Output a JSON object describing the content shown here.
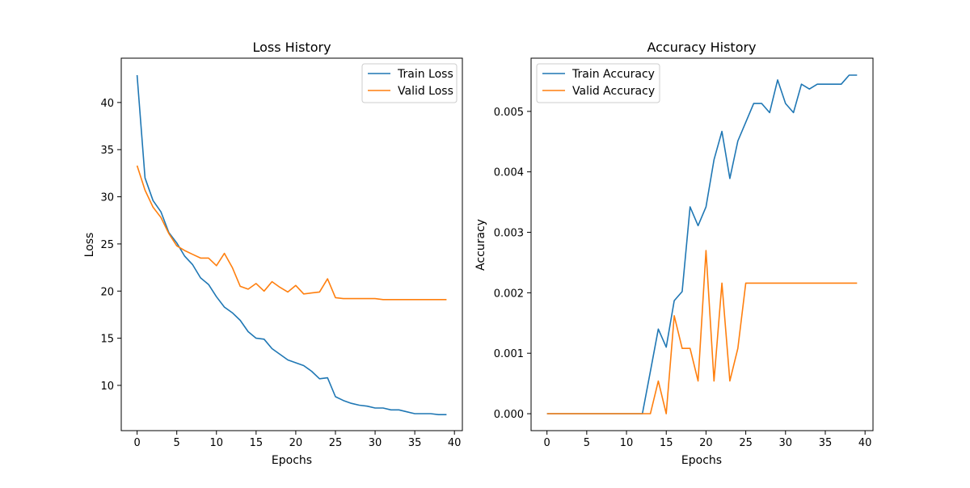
{
  "chart_data": [
    {
      "type": "line",
      "title": "Loss History",
      "xlabel": "Epochs",
      "ylabel": "Loss",
      "xlim": [
        -2,
        41
      ],
      "ylim": [
        5.2,
        44.7
      ],
      "x_ticks": [
        0,
        5,
        10,
        15,
        20,
        25,
        30,
        35,
        40
      ],
      "y_ticks": [
        10,
        15,
        20,
        25,
        30,
        35,
        40
      ],
      "grid": false,
      "legend_position": "upper right",
      "x": [
        0,
        1,
        2,
        3,
        4,
        5,
        6,
        7,
        8,
        9,
        10,
        11,
        12,
        13,
        14,
        15,
        16,
        17,
        18,
        19,
        20,
        21,
        22,
        23,
        24,
        25,
        26,
        27,
        28,
        29,
        30,
        31,
        32,
        33,
        34,
        35,
        36,
        37,
        38,
        39
      ],
      "series": [
        {
          "name": "Train Loss",
          "color": "#1f77b4",
          "values": [
            42.9,
            32.0,
            29.6,
            28.4,
            26.2,
            25.1,
            23.7,
            22.8,
            21.4,
            20.7,
            19.4,
            18.3,
            17.7,
            16.9,
            15.7,
            15.0,
            14.9,
            13.9,
            13.3,
            12.7,
            12.4,
            12.1,
            11.5,
            10.7,
            10.8,
            8.8,
            8.4,
            8.1,
            7.9,
            7.8,
            7.6,
            7.6,
            7.4,
            7.4,
            7.2,
            7.0,
            7.0,
            7.0,
            6.9,
            6.9
          ]
        },
        {
          "name": "Valid Loss",
          "color": "#ff7f0e",
          "values": [
            33.3,
            30.7,
            28.9,
            27.8,
            26.1,
            24.8,
            24.3,
            23.9,
            23.5,
            23.5,
            22.7,
            24.0,
            22.5,
            20.5,
            20.2,
            20.8,
            20.0,
            21.0,
            20.4,
            19.9,
            20.6,
            19.7,
            19.8,
            19.9,
            21.3,
            19.3,
            19.2,
            19.2,
            19.2,
            19.2,
            19.2,
            19.1,
            19.1,
            19.1,
            19.1,
            19.1,
            19.1,
            19.1,
            19.1,
            19.1
          ]
        }
      ]
    },
    {
      "type": "line",
      "title": "Accuracy History",
      "xlabel": "Epochs",
      "ylabel": "Accuracy",
      "xlim": [
        -2,
        41
      ],
      "ylim": [
        -0.00028,
        0.00588
      ],
      "x_ticks": [
        0,
        5,
        10,
        15,
        20,
        25,
        30,
        35,
        40
      ],
      "y_ticks": [
        "0.000",
        "0.001",
        "0.002",
        "0.003",
        "0.004",
        "0.005"
      ],
      "grid": false,
      "legend_position": "upper left",
      "x": [
        0,
        1,
        2,
        3,
        4,
        5,
        6,
        7,
        8,
        9,
        10,
        11,
        12,
        13,
        14,
        15,
        16,
        17,
        18,
        19,
        20,
        21,
        22,
        23,
        24,
        25,
        26,
        27,
        28,
        29,
        30,
        31,
        32,
        33,
        34,
        35,
        36,
        37,
        38,
        39
      ],
      "series": [
        {
          "name": "Train Accuracy",
          "color": "#1f77b4",
          "values": [
            0,
            0,
            0,
            0,
            0,
            0,
            0,
            0,
            0,
            0,
            0,
            0,
            0,
            0.0007,
            0.0014,
            0.0011,
            0.00187,
            0.00202,
            0.00342,
            0.00311,
            0.00342,
            0.0042,
            0.00467,
            0.00389,
            0.00451,
            0.00482,
            0.00513,
            0.00513,
            0.00498,
            0.00552,
            0.00513,
            0.00498,
            0.00545,
            0.00537,
            0.00545,
            0.00545,
            0.00545,
            0.00545,
            0.0056,
            0.0056
          ]
        },
        {
          "name": "Valid Accuracy",
          "color": "#ff7f0e",
          "values": [
            0,
            0,
            0,
            0,
            0,
            0,
            0,
            0,
            0,
            0,
            0,
            0,
            0,
            0,
            0.00054,
            0,
            0.00162,
            0.00108,
            0.00108,
            0.00054,
            0.0027,
            0.00054,
            0.00216,
            0.00054,
            0.00108,
            0.00216,
            0.00216,
            0.00216,
            0.00216,
            0.00216,
            0.00216,
            0.00216,
            0.00216,
            0.00216,
            0.00216,
            0.00216,
            0.00216,
            0.00216,
            0.00216,
            0.00216
          ]
        }
      ]
    }
  ]
}
